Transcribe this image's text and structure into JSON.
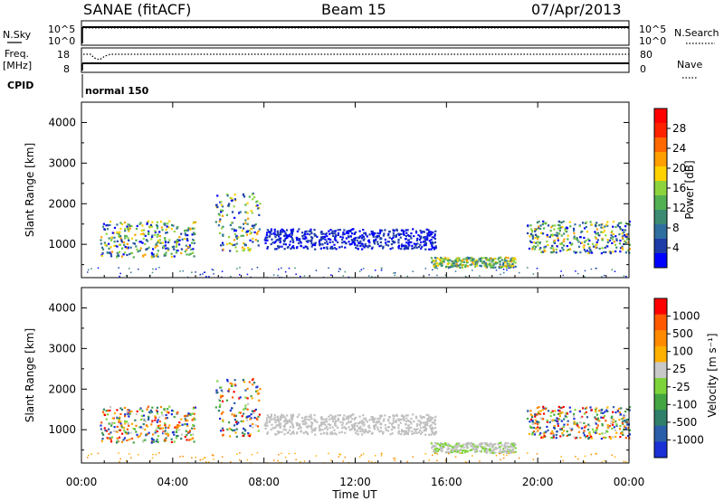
{
  "header": {
    "station": "SANAE (fitACF)",
    "beam": "Beam 15",
    "date": "07/Apr/2013"
  },
  "top_panel_1": {
    "left_label": "N.Sky",
    "left_ticks": [
      "10^5",
      "10^0"
    ],
    "right_ticks": [
      "10^5",
      "10^0"
    ],
    "right_label": "N.Search"
  },
  "top_panel_2": {
    "left_label_1": "Freq.",
    "left_label_2": "[MHz]",
    "left_ticks": [
      "18",
      "8"
    ],
    "right_ticks": [
      "80",
      "0"
    ],
    "right_label": "Nave"
  },
  "cpid": {
    "label": "CPID",
    "value": "normal 150"
  },
  "power_panel": {
    "ylabel": "Slant Range [km]",
    "yticks": [
      "4000",
      "3000",
      "2000",
      "1000"
    ],
    "colorbar_label": "Power [dB]",
    "colorbar_ticks": [
      "28",
      "24",
      "20",
      "16",
      "12",
      "8",
      "4"
    ],
    "colors": [
      "#0000ff",
      "#1d3ca8",
      "#2f6f9f",
      "#3c8a72",
      "#52b052",
      "#8dd43c",
      "#ffd200",
      "#ff9f00",
      "#ff6800",
      "#ff2200",
      "#ff0000"
    ]
  },
  "velocity_panel": {
    "ylabel": "Slant Range [km]",
    "yticks": [
      "4000",
      "3000",
      "2000",
      "1000"
    ],
    "colorbar_label": "Velocity [m s⁻¹]",
    "colorbar_ticks": [
      "1000",
      "500",
      "100",
      "25",
      "-25",
      "-100",
      "-500",
      "-1000"
    ],
    "colors": [
      "#1a2fd6",
      "#2a5ea8",
      "#2f7f6a",
      "#43a542",
      "#7dd43a",
      "#c8c8c8",
      "#ffb000",
      "#ff8a00",
      "#ff5a00",
      "#ff0000"
    ],
    "ground_scatter_color": "#c0c0c0"
  },
  "x_axis": {
    "ticks": [
      "00:00",
      "04:00",
      "08:00",
      "12:00",
      "16:00",
      "20:00",
      "00:00"
    ],
    "label": "Time UT"
  },
  "chart_data": {
    "type": "heatmap",
    "x_range_hours": [
      0,
      24
    ],
    "y_range_km": [
      180,
      4500
    ],
    "power_scale_db": [
      0,
      30
    ],
    "velocity_scale_ms": [
      -1000,
      1000
    ],
    "echo_regions": [
      {
        "start_hour": 0.8,
        "end_hour": 5.0,
        "range_km": [
          700,
          1600
        ]
      },
      {
        "start_hour": 5.8,
        "end_hour": 7.8,
        "range_km": [
          850,
          2300
        ]
      },
      {
        "start_hour": 8.0,
        "end_hour": 15.5,
        "range_km": [
          900,
          1400
        ]
      },
      {
        "start_hour": 15.3,
        "end_hour": 19.0,
        "range_km": [
          450,
          700
        ]
      },
      {
        "start_hour": 19.5,
        "end_hour": 24.0,
        "range_km": [
          800,
          1600
        ]
      }
    ]
  }
}
